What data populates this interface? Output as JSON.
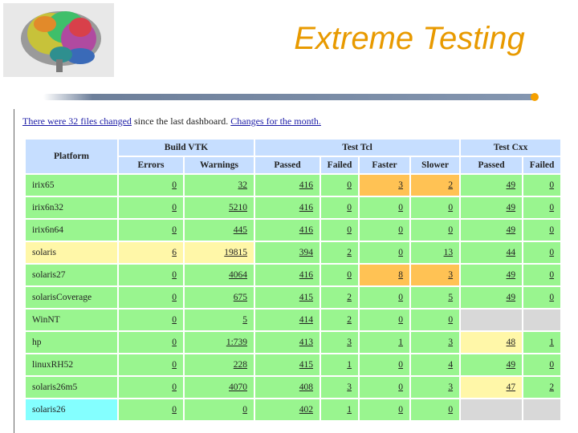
{
  "header": {
    "title": "Extreme Testing"
  },
  "intro": {
    "link1": "There were 32 files changed",
    "mid": " since the last dashboard. ",
    "link2": "Changes for the month."
  },
  "table": {
    "platform_label": "Platform",
    "groups": [
      "Build VTK",
      "Test Tcl",
      "Test Cxx"
    ],
    "columns": [
      "Errors",
      "Warnings",
      "Passed",
      "Failed",
      "Faster",
      "Slower",
      "Passed",
      "Failed"
    ],
    "rows": [
      {
        "platform": "irix65",
        "cells": [
          "0",
          "32",
          "416",
          "0",
          "3",
          "2",
          "49",
          "0"
        ],
        "colors": [
          "g",
          "g",
          "g",
          "g",
          "g",
          "o",
          "o",
          "g",
          "g"
        ]
      },
      {
        "platform": "irix6n32",
        "cells": [
          "0",
          "5210",
          "416",
          "0",
          "0",
          "0",
          "49",
          "0"
        ],
        "colors": [
          "g",
          "g",
          "g",
          "g",
          "g",
          "g",
          "g",
          "g",
          "g"
        ]
      },
      {
        "platform": "irix6n64",
        "cells": [
          "0",
          "445",
          "416",
          "0",
          "0",
          "0",
          "49",
          "0"
        ],
        "colors": [
          "g",
          "g",
          "g",
          "g",
          "g",
          "g",
          "g",
          "g",
          "g"
        ]
      },
      {
        "platform": "solaris",
        "cells": [
          "6",
          "19815",
          "394",
          "2",
          "0",
          "13",
          "44",
          "0"
        ],
        "colors": [
          "y",
          "y",
          "y",
          "g",
          "g",
          "g",
          "g",
          "g",
          "g"
        ]
      },
      {
        "platform": "solaris27",
        "cells": [
          "0",
          "4064",
          "416",
          "0",
          "8",
          "3",
          "49",
          "0"
        ],
        "colors": [
          "g",
          "g",
          "g",
          "g",
          "g",
          "o",
          "o",
          "g",
          "g"
        ]
      },
      {
        "platform": "solarisCoverage",
        "cells": [
          "0",
          "675",
          "415",
          "2",
          "0",
          "5",
          "49",
          "0"
        ],
        "colors": [
          "g",
          "g",
          "g",
          "g",
          "g",
          "g",
          "g",
          "g",
          "g"
        ]
      },
      {
        "platform": "WinNT",
        "cells": [
          "0",
          "5",
          "414",
          "2",
          "0",
          "0",
          "",
          ""
        ],
        "colors": [
          "g",
          "g",
          "g",
          "g",
          "g",
          "g",
          "g",
          "gr",
          "gr"
        ]
      },
      {
        "platform": "hp",
        "cells": [
          "0",
          "1:739",
          "413",
          "3",
          "1",
          "3",
          "48",
          "1"
        ],
        "colors": [
          "g",
          "g",
          "g",
          "g",
          "g",
          "g",
          "g",
          "y",
          "g"
        ]
      },
      {
        "platform": "linuxRH52",
        "cells": [
          "0",
          "228",
          "415",
          "1",
          "0",
          "4",
          "49",
          "0"
        ],
        "colors": [
          "g",
          "g",
          "g",
          "g",
          "g",
          "g",
          "g",
          "g",
          "g"
        ]
      },
      {
        "platform": "solaris26m5",
        "cells": [
          "0",
          "4070",
          "408",
          "3",
          "0",
          "3",
          "47",
          "2"
        ],
        "colors": [
          "g",
          "g",
          "g",
          "g",
          "g",
          "g",
          "g",
          "y",
          "g"
        ]
      },
      {
        "platform": "solaris26",
        "cells": [
          "0",
          "0",
          "402",
          "1",
          "0",
          "0",
          "",
          ""
        ],
        "colors": [
          "c",
          "g",
          "g",
          "g",
          "g",
          "g",
          "g",
          "gr",
          "gr"
        ]
      }
    ]
  },
  "colors": {
    "title": "#e89a00",
    "header_bg": "#c6deff",
    "pass_green": "#99f58f",
    "warn_yellow": "#fff7a8",
    "alert_orange": "#ffc254",
    "empty_gray": "#d8d8d8",
    "cyan": "#84ffff"
  },
  "icons": {
    "logo": "brain-icon"
  }
}
